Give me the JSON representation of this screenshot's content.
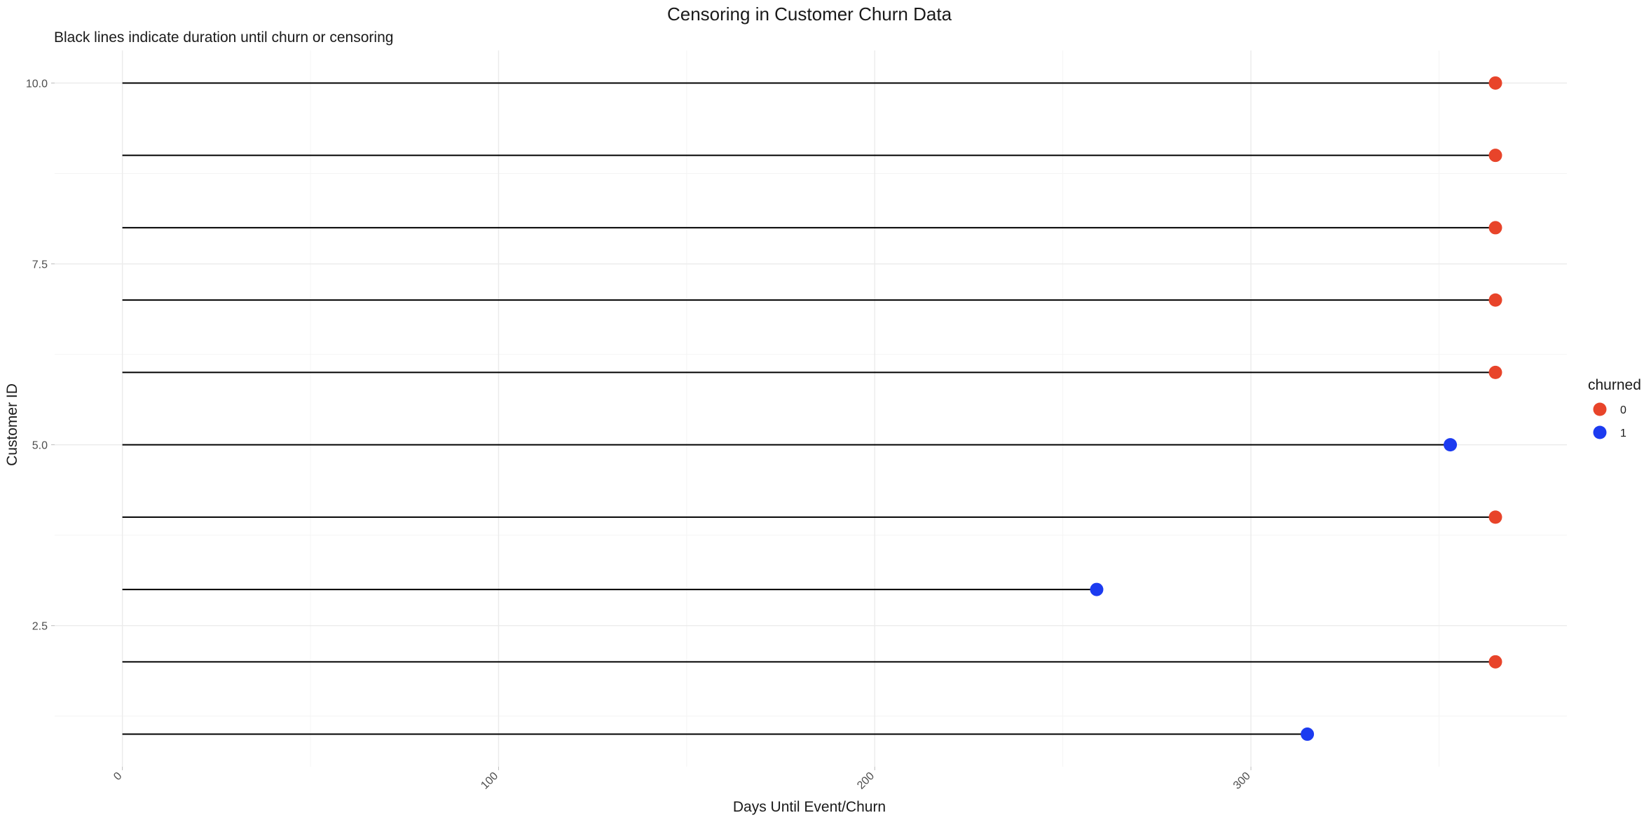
{
  "chart_data": {
    "type": "scatter",
    "title": "Censoring in Customer Churn Data",
    "subtitle": "Black lines indicate duration until churn or censoring",
    "xlabel": "Days Until Event/Churn",
    "ylabel": "Customer ID",
    "xlim": [
      -18,
      384
    ],
    "ylim": [
      0.55,
      10.45
    ],
    "x_ticks": [
      0,
      100,
      200,
      300
    ],
    "x_tick_labels": [
      "0",
      "100",
      "200",
      "300"
    ],
    "x_minor_ticks": [
      50,
      150,
      250,
      350
    ],
    "y_ticks": [
      2.5,
      5.0,
      7.5,
      10.0
    ],
    "y_tick_labels": [
      "2.5",
      "5.0",
      "7.5",
      "10.0"
    ],
    "y_minor_ticks": [
      1.25,
      3.75,
      6.25,
      8.75
    ],
    "grid": true,
    "segment_color": "#000000",
    "legend": {
      "title": "churned",
      "placement": "right",
      "entries": [
        {
          "label": "0",
          "color": "#E8442A"
        },
        {
          "label": "1",
          "color": "#1C3BF0"
        }
      ]
    },
    "points": [
      {
        "customer_id": 1,
        "x_start": 0,
        "days": 315,
        "churned": "1"
      },
      {
        "customer_id": 2,
        "x_start": 0,
        "days": 365,
        "churned": "0"
      },
      {
        "customer_id": 3,
        "x_start": 0,
        "days": 259,
        "churned": "1"
      },
      {
        "customer_id": 4,
        "x_start": 0,
        "days": 365,
        "churned": "0"
      },
      {
        "customer_id": 5,
        "x_start": 0,
        "days": 353,
        "churned": "1"
      },
      {
        "customer_id": 6,
        "x_start": 0,
        "days": 365,
        "churned": "0"
      },
      {
        "customer_id": 7,
        "x_start": 0,
        "days": 365,
        "churned": "0"
      },
      {
        "customer_id": 8,
        "x_start": 0,
        "days": 365,
        "churned": "0"
      },
      {
        "customer_id": 9,
        "x_start": 0,
        "days": 365,
        "churned": "0"
      },
      {
        "customer_id": 10,
        "x_start": 0,
        "days": 365,
        "churned": "0"
      }
    ]
  }
}
